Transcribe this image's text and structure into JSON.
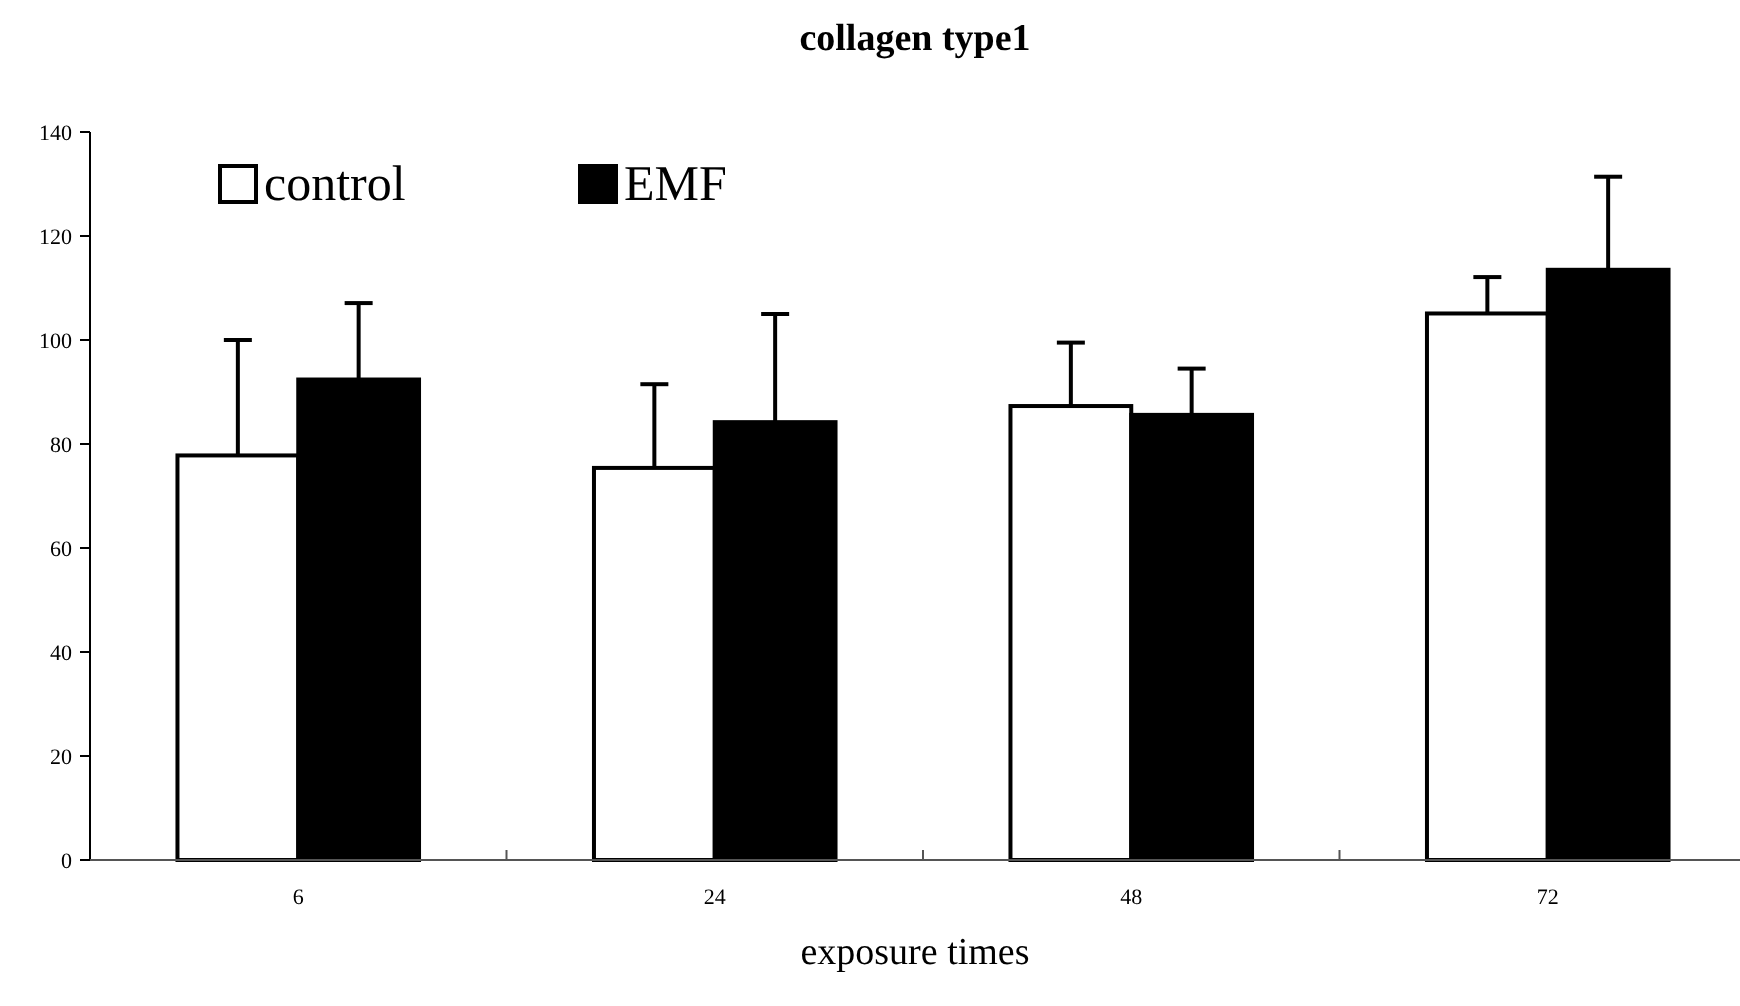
{
  "chart_data": {
    "type": "bar",
    "title": "collagen type1",
    "xlabel": "exposure times",
    "categories": [
      "6",
      "24",
      "48",
      "72"
    ],
    "series": [
      {
        "name": "control",
        "color": "#ffffff",
        "values": [
          77.8,
          75.4,
          87.3,
          105.1
        ],
        "errors": [
          [
            77.8,
            100
          ],
          [
            75.4,
            91.5
          ],
          [
            87.3,
            99.5
          ],
          [
            105.1,
            112.1
          ]
        ]
      },
      {
        "name": "EMF",
        "color": "#000000",
        "values": [
          92.4,
          84.2,
          85.6,
          113.5
        ],
        "errors": [
          [
            92.4,
            107.1
          ],
          [
            84.2,
            105
          ],
          [
            85.6,
            94.5
          ],
          [
            113.5,
            131.4
          ]
        ]
      }
    ],
    "ylim": [
      0,
      140
    ],
    "yticks": [
      0,
      20,
      40,
      60,
      80,
      100,
      120,
      140
    ],
    "grid": false,
    "legend": "top left"
  }
}
